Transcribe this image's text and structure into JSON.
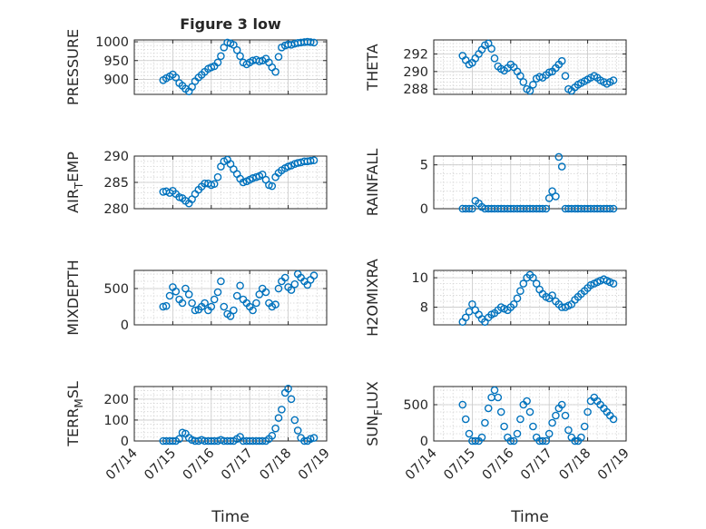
{
  "chart_data": [
    {
      "type": "scatter",
      "ylabel": "PRESSURE",
      "title": "Figure 3 low",
      "xlim": [
        0,
        5
      ],
      "ylim": [
        860,
        1005
      ],
      "yticks": [
        900,
        950,
        1000
      ],
      "x": [
        0.75,
        0.83,
        0.92,
        1.0,
        1.08,
        1.17,
        1.25,
        1.33,
        1.42,
        1.5,
        1.58,
        1.67,
        1.75,
        1.83,
        1.92,
        2.0,
        2.08,
        2.17,
        2.25,
        2.33,
        2.42,
        2.5,
        2.58,
        2.67,
        2.75,
        2.83,
        2.92,
        3.0,
        3.08,
        3.17,
        3.25,
        3.33,
        3.42,
        3.5,
        3.58,
        3.67,
        3.75,
        3.83,
        3.92,
        4.0,
        4.08,
        4.17,
        4.25,
        4.33,
        4.42,
        4.5,
        4.58,
        4.67
      ],
      "y": [
        898,
        903,
        908,
        913,
        905,
        890,
        883,
        875,
        868,
        880,
        895,
        905,
        912,
        920,
        928,
        932,
        935,
        945,
        962,
        985,
        998,
        996,
        992,
        978,
        962,
        945,
        940,
        945,
        950,
        952,
        948,
        950,
        955,
        945,
        932,
        920,
        960,
        985,
        990,
        993,
        992,
        995,
        997,
        998,
        999,
        1000,
        999,
        998
      ]
    },
    {
      "type": "scatter",
      "ylabel": "THETA",
      "xlim": [
        0,
        5
      ],
      "ylim": [
        287.4,
        293.6
      ],
      "yticks": [
        288,
        290,
        292
      ],
      "x": [
        0.75,
        0.83,
        0.92,
        1.0,
        1.08,
        1.17,
        1.25,
        1.33,
        1.42,
        1.5,
        1.58,
        1.67,
        1.75,
        1.83,
        1.92,
        2.0,
        2.08,
        2.17,
        2.25,
        2.33,
        2.42,
        2.5,
        2.58,
        2.67,
        2.75,
        2.83,
        2.92,
        3.0,
        3.08,
        3.17,
        3.25,
        3.33,
        3.42,
        3.5,
        3.58,
        3.67,
        3.75,
        3.83,
        3.92,
        4.0,
        4.08,
        4.17,
        4.25,
        4.33,
        4.42,
        4.5,
        4.58,
        4.67
      ],
      "y": [
        291.8,
        291.3,
        290.8,
        291.0,
        291.5,
        292.0,
        292.5,
        293.0,
        293.2,
        292.6,
        291.5,
        290.6,
        290.3,
        290.1,
        290.4,
        290.8,
        290.5,
        290.0,
        289.5,
        288.8,
        288.0,
        287.8,
        288.5,
        289.2,
        289.4,
        289.3,
        289.6,
        289.9,
        290.0,
        290.4,
        290.8,
        291.2,
        289.5,
        288.0,
        287.8,
        288.2,
        288.5,
        288.7,
        288.9,
        289.1,
        289.3,
        289.5,
        289.3,
        289.0,
        288.8,
        288.6,
        288.8,
        289.0
      ]
    },
    {
      "type": "scatter",
      "ylabel": "AIR_TEMP",
      "xlim": [
        0,
        5
      ],
      "ylim": [
        280,
        290
      ],
      "yticks": [
        280,
        285,
        290
      ],
      "x": [
        0.75,
        0.83,
        0.92,
        1.0,
        1.08,
        1.17,
        1.25,
        1.33,
        1.42,
        1.5,
        1.58,
        1.67,
        1.75,
        1.83,
        1.92,
        2.0,
        2.08,
        2.17,
        2.25,
        2.33,
        2.42,
        2.5,
        2.58,
        2.67,
        2.75,
        2.83,
        2.92,
        3.0,
        3.08,
        3.17,
        3.25,
        3.33,
        3.42,
        3.5,
        3.58,
        3.67,
        3.75,
        3.83,
        3.92,
        4.0,
        4.08,
        4.17,
        4.25,
        4.33,
        4.42,
        4.5,
        4.58,
        4.67
      ],
      "y": [
        283.2,
        283.3,
        283.0,
        283.4,
        282.8,
        282.2,
        282.0,
        281.5,
        281.0,
        281.8,
        282.8,
        283.6,
        284.2,
        284.8,
        284.8,
        284.5,
        284.7,
        286.0,
        288.0,
        289.0,
        289.3,
        288.5,
        287.5,
        286.6,
        285.7,
        285.0,
        285.2,
        285.5,
        285.8,
        286.0,
        286.2,
        286.5,
        285.5,
        284.5,
        284.3,
        286.0,
        286.8,
        287.3,
        287.7,
        288.0,
        288.2,
        288.5,
        288.7,
        288.8,
        289.0,
        289.0,
        289.1,
        289.2
      ]
    },
    {
      "type": "scatter",
      "ylabel": "RAINFALL",
      "xlim": [
        0,
        5
      ],
      "ylim": [
        0,
        6
      ],
      "yticks": [
        0,
        5
      ],
      "x": [
        0.75,
        0.83,
        0.92,
        1.0,
        1.08,
        1.17,
        1.25,
        1.33,
        1.42,
        1.5,
        1.58,
        1.67,
        1.75,
        1.83,
        1.92,
        2.0,
        2.08,
        2.17,
        2.25,
        2.33,
        2.42,
        2.5,
        2.58,
        2.67,
        2.75,
        2.83,
        2.92,
        3.0,
        3.08,
        3.17,
        3.25,
        3.33,
        3.42,
        3.5,
        3.58,
        3.67,
        3.75,
        3.83,
        3.92,
        4.0,
        4.08,
        4.17,
        4.25,
        4.33,
        4.42,
        4.5,
        4.58,
        4.67
      ],
      "y": [
        0,
        0,
        0,
        0,
        0.9,
        0.6,
        0.2,
        0,
        0,
        0,
        0,
        0,
        0,
        0,
        0,
        0,
        0,
        0,
        0,
        0,
        0,
        0,
        0,
        0,
        0,
        0,
        0,
        1.2,
        2.0,
        1.4,
        5.9,
        4.8,
        0,
        0,
        0,
        0,
        0,
        0,
        0,
        0,
        0,
        0,
        0,
        0,
        0,
        0,
        0,
        0
      ]
    },
    {
      "type": "scatter",
      "ylabel": "MIXDEPTH",
      "xlim": [
        0,
        5
      ],
      "ylim": [
        0,
        750
      ],
      "yticks": [
        0,
        500
      ],
      "x": [
        0.75,
        0.83,
        0.92,
        1.0,
        1.08,
        1.17,
        1.25,
        1.33,
        1.42,
        1.5,
        1.58,
        1.67,
        1.75,
        1.83,
        1.92,
        2.0,
        2.08,
        2.17,
        2.25,
        2.33,
        2.42,
        2.5,
        2.58,
        2.67,
        2.75,
        2.83,
        2.92,
        3.0,
        3.08,
        3.17,
        3.25,
        3.33,
        3.42,
        3.5,
        3.58,
        3.67,
        3.75,
        3.83,
        3.92,
        4.0,
        4.08,
        4.17,
        4.25,
        4.33,
        4.42,
        4.5,
        4.58,
        4.67
      ],
      "y": [
        250,
        260,
        400,
        520,
        460,
        350,
        300,
        500,
        420,
        300,
        200,
        210,
        250,
        300,
        200,
        250,
        350,
        450,
        600,
        250,
        150,
        120,
        200,
        400,
        540,
        350,
        300,
        250,
        200,
        300,
        420,
        500,
        450,
        300,
        250,
        280,
        500,
        600,
        650,
        520,
        480,
        560,
        700,
        650,
        600,
        550,
        620,
        680
      ]
    },
    {
      "type": "scatter",
      "ylabel": "H2OMIXRA",
      "xlim": [
        0,
        5
      ],
      "ylim": [
        6.8,
        10.5
      ],
      "yticks": [
        8,
        10
      ],
      "x": [
        0.75,
        0.83,
        0.92,
        1.0,
        1.08,
        1.17,
        1.25,
        1.33,
        1.42,
        1.5,
        1.58,
        1.67,
        1.75,
        1.83,
        1.92,
        2.0,
        2.08,
        2.17,
        2.25,
        2.33,
        2.42,
        2.5,
        2.58,
        2.67,
        2.75,
        2.83,
        2.92,
        3.0,
        3.08,
        3.17,
        3.25,
        3.33,
        3.42,
        3.5,
        3.58,
        3.67,
        3.75,
        3.83,
        3.92,
        4.0,
        4.08,
        4.17,
        4.25,
        4.33,
        4.42,
        4.5,
        4.58,
        4.67
      ],
      "y": [
        7.0,
        7.3,
        7.7,
        8.2,
        7.8,
        7.5,
        7.2,
        7.0,
        7.3,
        7.5,
        7.6,
        7.8,
        8.0,
        7.9,
        7.8,
        8.0,
        8.2,
        8.6,
        9.1,
        9.6,
        10.0,
        10.2,
        10.0,
        9.6,
        9.2,
        8.9,
        8.7,
        8.6,
        8.8,
        8.4,
        8.2,
        8.0,
        8.0,
        8.1,
        8.2,
        8.5,
        8.7,
        8.9,
        9.1,
        9.3,
        9.5,
        9.6,
        9.7,
        9.8,
        9.9,
        9.8,
        9.7,
        9.6
      ]
    },
    {
      "type": "scatter",
      "ylabel": "TERR_MSL",
      "xlim": [
        0,
        5
      ],
      "ylim": [
        0,
        260
      ],
      "yticks": [
        0,
        100,
        200
      ],
      "x": [
        0.75,
        0.83,
        0.92,
        1.0,
        1.08,
        1.17,
        1.25,
        1.33,
        1.42,
        1.5,
        1.58,
        1.67,
        1.75,
        1.83,
        1.92,
        2.0,
        2.08,
        2.17,
        2.25,
        2.33,
        2.42,
        2.5,
        2.58,
        2.67,
        2.75,
        2.83,
        2.92,
        3.0,
        3.08,
        3.17,
        3.25,
        3.33,
        3.42,
        3.5,
        3.58,
        3.67,
        3.75,
        3.83,
        3.92,
        4.0,
        4.08,
        4.17,
        4.25,
        4.33,
        4.42,
        4.5,
        4.58,
        4.67
      ],
      "y": [
        0,
        0,
        0,
        0,
        0,
        10,
        40,
        35,
        15,
        5,
        0,
        0,
        5,
        0,
        0,
        0,
        0,
        0,
        5,
        0,
        0,
        0,
        0,
        10,
        20,
        0,
        0,
        0,
        0,
        0,
        0,
        0,
        0,
        10,
        25,
        60,
        110,
        150,
        230,
        250,
        200,
        100,
        50,
        15,
        0,
        0,
        10,
        15
      ]
    },
    {
      "type": "scatter",
      "ylabel": "SUN_FLUX",
      "xlim": [
        0,
        5
      ],
      "ylim": [
        0,
        750
      ],
      "yticks": [
        0,
        500
      ],
      "x": [
        0.75,
        0.83,
        0.92,
        1.0,
        1.08,
        1.17,
        1.25,
        1.33,
        1.42,
        1.5,
        1.58,
        1.67,
        1.75,
        1.83,
        1.92,
        2.0,
        2.08,
        2.17,
        2.25,
        2.33,
        2.42,
        2.5,
        2.58,
        2.67,
        2.75,
        2.83,
        2.92,
        3.0,
        3.08,
        3.17,
        3.25,
        3.33,
        3.42,
        3.5,
        3.58,
        3.67,
        3.75,
        3.83,
        3.92,
        4.0,
        4.08,
        4.17,
        4.25,
        4.33,
        4.42,
        4.5,
        4.58,
        4.67
      ],
      "y": [
        500,
        300,
        100,
        0,
        0,
        0,
        50,
        250,
        450,
        600,
        700,
        600,
        400,
        200,
        50,
        0,
        0,
        100,
        300,
        500,
        550,
        400,
        200,
        50,
        0,
        0,
        0,
        100,
        250,
        350,
        450,
        500,
        350,
        150,
        50,
        0,
        0,
        50,
        200,
        400,
        550,
        600,
        550,
        500,
        450,
        400,
        350,
        300
      ]
    }
  ],
  "x_tick_labels": [
    "07/14",
    "07/15",
    "07/16",
    "07/17",
    "07/18",
    "07/19"
  ],
  "x_axis_label": "Time"
}
